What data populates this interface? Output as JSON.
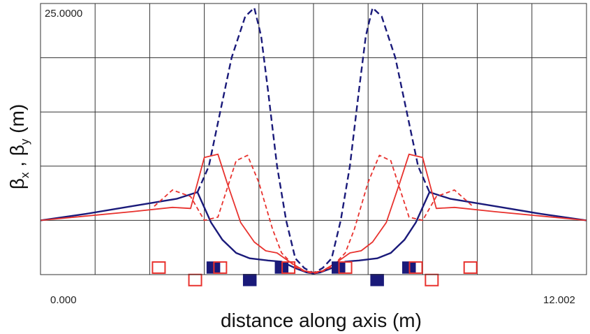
{
  "chart_data": {
    "type": "line",
    "title": "",
    "xlabel": "distance along axis (m)",
    "ylabel": "βx , βy  (m)",
    "ylabel_parts": {
      "beta": "β",
      "x": "x",
      "sep": " , ",
      "y": "y",
      "unit": "  (m)"
    },
    "xlim": [
      0,
      12.002
    ],
    "ylim": [
      0,
      25
    ],
    "x_tick_labels": [
      "0.000",
      "12.002"
    ],
    "y_max_label": "25.0000",
    "grid": true,
    "series": [
      {
        "color": "#1a1a7a",
        "dash": "solid",
        "x": [
          0,
          1.0,
          2.0,
          3.0,
          3.45,
          3.75,
          4.0,
          4.3,
          4.6,
          5.0,
          5.3,
          5.6,
          5.85,
          6.0,
          6.15,
          6.4,
          6.7,
          7.0,
          7.4,
          7.7,
          8.0,
          8.25,
          8.55,
          9.0,
          10.0,
          11.0,
          12.002
        ],
        "y": [
          5.0,
          5.6,
          6.3,
          7.0,
          7.6,
          4.8,
          3.2,
          2.0,
          1.5,
          1.3,
          1.2,
          0.6,
          0.2,
          0.1,
          0.2,
          0.6,
          1.2,
          1.3,
          1.5,
          2.0,
          3.2,
          4.8,
          7.6,
          7.0,
          6.3,
          5.6,
          5.0
        ]
      },
      {
        "color": "#1a1a7a",
        "dash": "dashed",
        "x": [
          3.45,
          3.7,
          3.9,
          4.2,
          4.5,
          4.7,
          4.85,
          5.0,
          5.2,
          5.4,
          5.6,
          5.8,
          6.0,
          6.2,
          6.4,
          6.6,
          6.8,
          7.0,
          7.15,
          7.3,
          7.5,
          7.8,
          8.1,
          8.3,
          8.55
        ],
        "y": [
          7.6,
          10.0,
          14.0,
          20.0,
          23.8,
          24.6,
          22.0,
          17.0,
          10.0,
          5.0,
          1.5,
          0.6,
          0.15,
          0.6,
          1.5,
          5.0,
          10.0,
          17.0,
          22.0,
          24.6,
          23.8,
          20.0,
          14.0,
          10.0,
          7.6
        ]
      },
      {
        "color": "#e8322e",
        "dash": "solid",
        "x": [
          0,
          1.0,
          2.0,
          2.9,
          3.3,
          3.6,
          3.9,
          4.1,
          4.4,
          4.7,
          4.95,
          5.2,
          5.5,
          5.8,
          6.0,
          6.2,
          6.5,
          6.8,
          7.05,
          7.3,
          7.6,
          7.9,
          8.1,
          8.4,
          8.7,
          9.1,
          10.0,
          11.0,
          12.002
        ],
        "y": [
          5.0,
          5.4,
          5.8,
          6.2,
          6.1,
          10.8,
          11.1,
          8.5,
          4.8,
          3.0,
          2.2,
          2.0,
          1.1,
          0.35,
          0.2,
          0.35,
          1.1,
          2.0,
          2.2,
          3.0,
          4.8,
          8.5,
          11.1,
          10.8,
          6.1,
          6.2,
          5.8,
          5.4,
          5.0
        ]
      },
      {
        "color": "#e8322e",
        "dash": "dashed",
        "x": [
          2.5,
          2.9,
          3.3,
          3.6,
          3.9,
          4.3,
          4.55,
          4.8,
          5.1,
          5.3,
          5.6,
          5.8,
          6.0,
          6.2,
          6.4,
          6.7,
          6.9,
          7.2,
          7.45,
          7.7,
          8.1,
          8.4,
          8.7,
          9.1,
          9.5
        ],
        "y": [
          6.3,
          7.8,
          7.2,
          5.0,
          5.3,
          10.5,
          11.0,
          8.5,
          4.2,
          2.0,
          0.7,
          0.3,
          0.1,
          0.3,
          0.7,
          2.0,
          4.2,
          8.5,
          11.0,
          10.5,
          5.3,
          5.0,
          7.2,
          7.8,
          6.3
        ]
      }
    ],
    "annotations": [
      {
        "x": 2.6,
        "y": 0.65,
        "style": "open",
        "color": "#e8322e"
      },
      {
        "x": 3.4,
        "y": -0.5,
        "style": "open",
        "color": "#e8322e"
      },
      {
        "x": 3.8,
        "y": 0.65,
        "style": "filled",
        "color": "#1a1a7a"
      },
      {
        "x": 3.95,
        "y": 0.65,
        "style": "open",
        "color": "#e8322e"
      },
      {
        "x": 4.6,
        "y": -0.5,
        "style": "filled",
        "color": "#1a1a7a"
      },
      {
        "x": 5.3,
        "y": 0.65,
        "style": "filled",
        "color": "#1a1a7a"
      },
      {
        "x": 5.45,
        "y": 0.65,
        "style": "open",
        "color": "#e8322e"
      },
      {
        "x": 6.55,
        "y": 0.65,
        "style": "filled",
        "color": "#1a1a7a"
      },
      {
        "x": 6.7,
        "y": 0.65,
        "style": "open",
        "color": "#e8322e"
      },
      {
        "x": 7.4,
        "y": -0.5,
        "style": "filled",
        "color": "#1a1a7a"
      },
      {
        "x": 8.1,
        "y": 0.65,
        "style": "filled",
        "color": "#1a1a7a"
      },
      {
        "x": 8.25,
        "y": 0.65,
        "style": "open",
        "color": "#e8322e"
      },
      {
        "x": 8.6,
        "y": -0.5,
        "style": "open",
        "color": "#e8322e"
      },
      {
        "x": 9.45,
        "y": 0.65,
        "style": "open",
        "color": "#e8322e"
      }
    ]
  }
}
